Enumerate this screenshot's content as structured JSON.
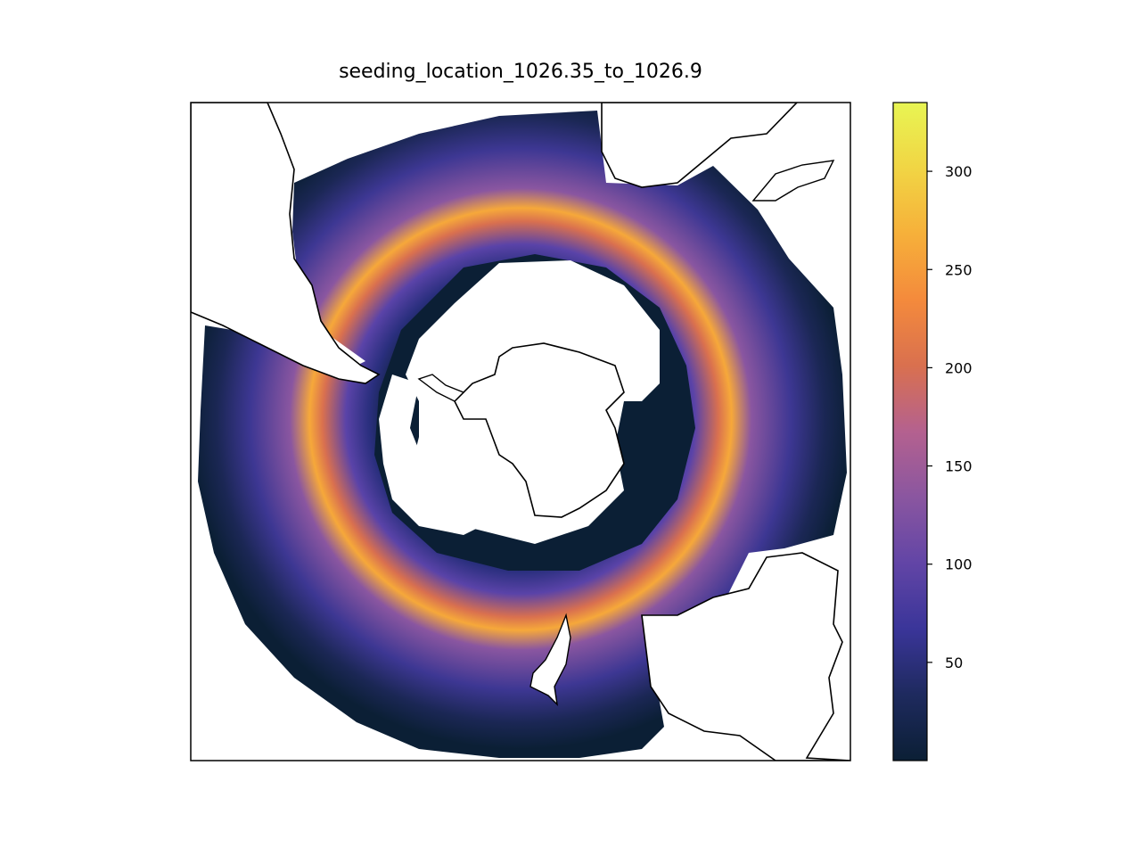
{
  "title": "seeding_location_1026.35_to_1026.9",
  "colorbar": {
    "ticks": [
      50,
      100,
      150,
      200,
      250,
      300
    ],
    "tick_labels": [
      "50",
      "100",
      "150",
      "200",
      "250",
      "300"
    ],
    "vmin": 0,
    "vmax": 335,
    "colors": [
      "#0b1f35",
      "#1e2a5e",
      "#3a3599",
      "#6245a6",
      "#8a56a0",
      "#b4618f",
      "#d9704f",
      "#f48a3c",
      "#f6b03a",
      "#f1d544",
      "#e8f553"
    ]
  },
  "map": {
    "projection": "south-polar-stereographic",
    "coastline_color": "#000000",
    "land_color": "#ffffff"
  }
}
